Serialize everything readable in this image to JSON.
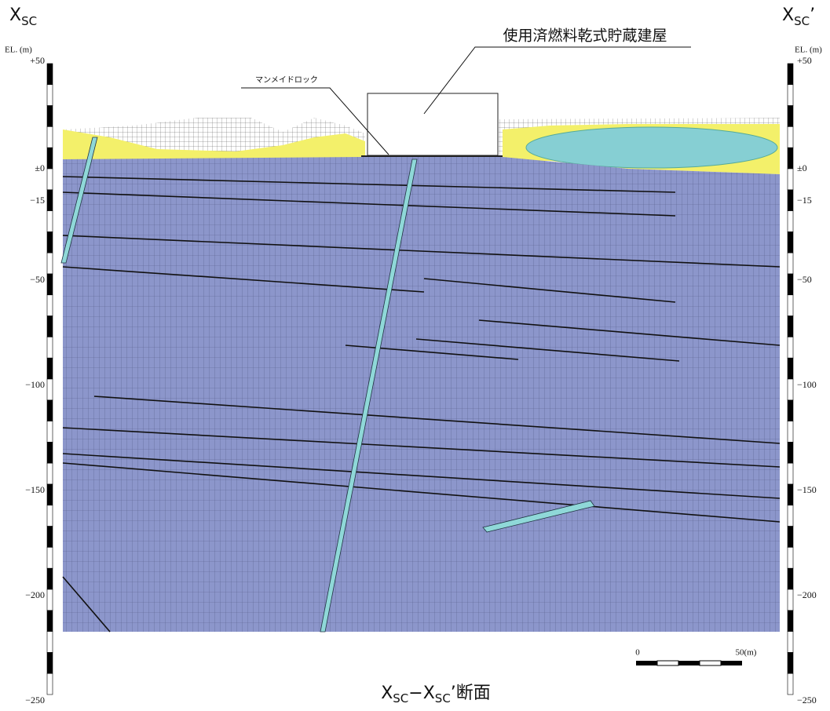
{
  "section_left": {
    "base": "X",
    "sub": "SC"
  },
  "section_right": {
    "base": "X",
    "sub": "SC",
    "suffix": "’"
  },
  "elevation_unit": "EL. (m)",
  "elevation_ticks": [
    "+50",
    "±0",
    "−15",
    "−50",
    "−100",
    "−150",
    "−200",
    "−250"
  ],
  "building_label": "使用済燃料乾式貯蔵建屋",
  "rock_label": "マンメイドロック",
  "scale_bar": {
    "start": "0",
    "end": "50(m)"
  },
  "caption": [
    "X",
    "SC",
    "−X",
    "SC",
    "’断面"
  ]
}
